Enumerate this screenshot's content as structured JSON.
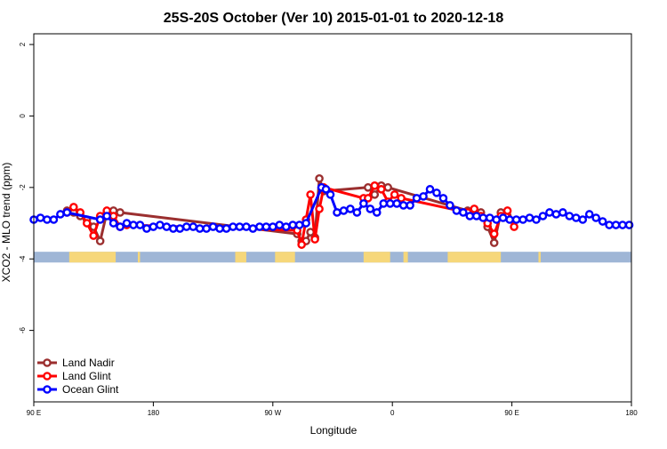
{
  "chart_data": {
    "type": "line",
    "title": "25S-20S October (Ver 10)   2015-01-01 to 2020-12-18",
    "xlabel": "Longitude",
    "ylabel": "XCO2 - MLO trend (ppm)",
    "xlim": [
      -90,
      180
    ],
    "ylim": [
      -8,
      2.3
    ],
    "grid": false,
    "legend_position": "bottom-left",
    "x_ticks": [
      {
        "value": -90,
        "label": "90 E"
      },
      {
        "value": -36,
        "label": "180"
      },
      {
        "value": 18,
        "label": "90 W"
      },
      {
        "value": 72,
        "label": "0"
      },
      {
        "value": 126,
        "label": "90 E"
      },
      {
        "value": 180,
        "label": "180"
      }
    ],
    "y_ticks": [
      {
        "value": 2,
        "label": "2"
      },
      {
        "value": 0,
        "label": "0"
      },
      {
        "value": -2,
        "label": "-2"
      },
      {
        "value": -4,
        "label": "-4"
      },
      {
        "value": -6,
        "label": "-6"
      }
    ],
    "land_band": {
      "y_range": [
        -4.1,
        -3.8
      ],
      "ocean_color": "#9fb6d6",
      "land_color": "#f6d77a",
      "land_segments": [
        [
          -74,
          -53
        ],
        [
          -43,
          -42
        ],
        [
          1,
          6
        ],
        [
          19,
          28
        ],
        [
          59,
          71
        ],
        [
          77,
          79
        ],
        [
          97,
          121
        ],
        [
          138,
          139
        ]
      ]
    },
    "series": [
      {
        "name": "Land Nadir",
        "color": "#9b2f2f",
        "x": [
          -75,
          -72,
          -69,
          -66,
          -63,
          -60,
          -57,
          -54,
          -51,
          29,
          31,
          33,
          35,
          37,
          39,
          41,
          61,
          64,
          67,
          70,
          106,
          109,
          112,
          115,
          118,
          121,
          124
        ],
        "y": [
          -2.65,
          -2.7,
          -2.8,
          -2.9,
          -3.1,
          -3.5,
          -2.7,
          -2.65,
          -2.7,
          -3.3,
          -3.5,
          -3.5,
          -3.25,
          -3.4,
          -1.75,
          -2.1,
          -2.0,
          -2.2,
          -1.95,
          -2.0,
          -2.65,
          -2.65,
          -2.7,
          -3.1,
          -3.55,
          -2.7,
          -2.8
        ]
      },
      {
        "name": "Land Glint",
        "color": "#ff0000",
        "x": [
          -75,
          -72,
          -69,
          -66,
          -63,
          -60,
          -57,
          -54,
          -51,
          -48,
          29,
          31,
          33,
          35,
          37,
          39,
          41,
          59,
          61,
          64,
          67,
          70,
          73,
          76,
          106,
          109,
          112,
          115,
          118,
          121,
          124,
          127
        ],
        "y": [
          -2.7,
          -2.55,
          -2.7,
          -3.0,
          -3.35,
          -2.8,
          -2.65,
          -2.8,
          -3.1,
          -3.05,
          -3.2,
          -3.6,
          -2.9,
          -2.2,
          -3.45,
          -2.6,
          -2.0,
          -2.3,
          -2.3,
          -1.95,
          -2.05,
          -2.4,
          -2.2,
          -2.3,
          -2.7,
          -2.6,
          -2.8,
          -3.0,
          -3.3,
          -2.8,
          -2.65,
          -3.1
        ]
      },
      {
        "name": "Ocean Glint",
        "color": "#0000ff",
        "x": [
          -90,
          -87,
          -84,
          -81,
          -78,
          -75,
          -60,
          -57,
          -54,
          -51,
          -48,
          -45,
          -42,
          -39,
          -36,
          -33,
          -30,
          -27,
          -24,
          -21,
          -18,
          -15,
          -12,
          -9,
          -6,
          -3,
          0,
          3,
          6,
          9,
          12,
          15,
          18,
          21,
          24,
          27,
          30,
          33,
          40,
          42,
          44,
          47,
          50,
          53,
          56,
          59,
          62,
          65,
          68,
          71,
          74,
          77,
          80,
          83,
          86,
          89,
          92,
          95,
          98,
          101,
          104,
          107,
          110,
          113,
          116,
          119,
          122,
          125,
          128,
          131,
          134,
          137,
          140,
          143,
          146,
          149,
          152,
          155,
          158,
          161,
          164,
          167,
          170,
          173,
          176,
          179
        ],
        "y": [
          -2.9,
          -2.85,
          -2.9,
          -2.9,
          -2.75,
          -2.7,
          -2.9,
          -2.8,
          -3.0,
          -3.1,
          -3.0,
          -3.05,
          -3.05,
          -3.15,
          -3.1,
          -3.05,
          -3.1,
          -3.15,
          -3.15,
          -3.1,
          -3.1,
          -3.15,
          -3.15,
          -3.1,
          -3.15,
          -3.15,
          -3.1,
          -3.1,
          -3.1,
          -3.15,
          -3.1,
          -3.1,
          -3.1,
          -3.05,
          -3.1,
          -3.05,
          -3.05,
          -3.0,
          -2.0,
          -2.05,
          -2.2,
          -2.7,
          -2.65,
          -2.6,
          -2.7,
          -2.45,
          -2.6,
          -2.7,
          -2.45,
          -2.45,
          -2.45,
          -2.5,
          -2.5,
          -2.3,
          -2.25,
          -2.05,
          -2.15,
          -2.3,
          -2.5,
          -2.65,
          -2.7,
          -2.8,
          -2.8,
          -2.85,
          -2.85,
          -2.9,
          -2.85,
          -2.9,
          -2.9,
          -2.9,
          -2.85,
          -2.9,
          -2.8,
          -2.7,
          -2.75,
          -2.7,
          -2.8,
          -2.85,
          -2.9,
          -2.75,
          -2.85,
          -2.95,
          -3.05,
          -3.05,
          -3.05,
          -3.05
        ]
      }
    ]
  }
}
